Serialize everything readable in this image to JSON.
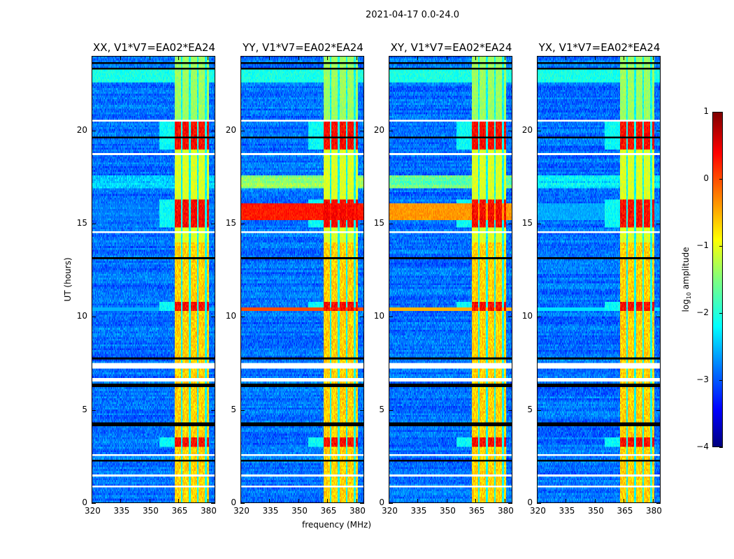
{
  "chart_data": {
    "type": "heatmap",
    "title": "2021-04-17 0.0-24.0",
    "xlabel": "frequency (MHz)",
    "ylabel": "UT (hours)",
    "xlim": [
      320,
      384
    ],
    "ylim": [
      0,
      24
    ],
    "xticks": [
      "320",
      "335",
      "350",
      "365",
      "380"
    ],
    "xtick_values": [
      320,
      335,
      350,
      365,
      380
    ],
    "yticks": [
      "0",
      "5",
      "10",
      "15",
      "20"
    ],
    "ytick_values": [
      0,
      5,
      10,
      15,
      20
    ],
    "colorbar": {
      "label_main": "log",
      "label_sub": "10",
      "label_rest": " amplitude",
      "range": [
        -4,
        1
      ],
      "ticks": [
        "−4",
        "−3",
        "−2",
        "−1",
        "0",
        "1"
      ],
      "tick_values": [
        -4,
        -3,
        -2,
        -1,
        0,
        1
      ],
      "colormap": "jet"
    },
    "panels": [
      {
        "title": "XX, V1*V7=EA02*EA24",
        "broadband_rfi": 0.0
      },
      {
        "title": "YY, V1*V7=EA02*EA24",
        "broadband_rfi": 1.0
      },
      {
        "title": "XY, V1*V7=EA02*EA24",
        "broadband_rfi": 0.8
      },
      {
        "title": "YX, V1*V7=EA02*EA24",
        "broadband_rfi": 0.1
      }
    ],
    "features": {
      "bright_band_mhz": [
        363,
        381
      ],
      "flagged_ut_ranges": [
        [
          7.2,
          7.5
        ],
        [
          6.5,
          6.7
        ],
        [
          2.5,
          2.65
        ],
        [
          0.85,
          0.92
        ],
        [
          1.4,
          1.46
        ],
        [
          18.7,
          18.76
        ],
        [
          14.5,
          14.56
        ],
        [
          20.5,
          20.56
        ]
      ],
      "strong_rfi_ut_ranges": [
        [
          19.0,
          20.6
        ],
        [
          14.8,
          16.3
        ],
        [
          10.3,
          10.8
        ],
        [
          3.0,
          3.5
        ]
      ]
    }
  }
}
